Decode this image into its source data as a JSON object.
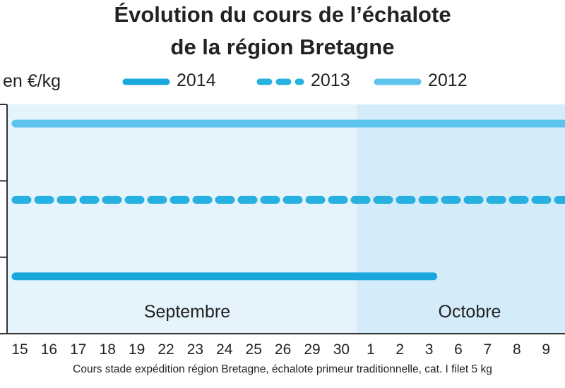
{
  "title_line1": "Évolution du cours de l’échalote",
  "title_line2": "de la région Bretagne",
  "unit_label": "en €/kg",
  "footnote": "Cours stade expédition région Bretagne, échalote primeur traditionnelle, cat. I filet 5 kg",
  "colors": {
    "series_2014": "#1aa7dc",
    "series_2013": "#27b1e0",
    "series_2012": "#5cc3ec",
    "plot_september": "#e5f3fc",
    "plot_october": "#d4ebf9",
    "axis": "#333333"
  },
  "chart_data": {
    "type": "line",
    "title": "Évolution du cours de l’échalote de la région Bretagne",
    "ylabel": "en €/kg",
    "xlabel": "",
    "x": [
      "15",
      "16",
      "17",
      "18",
      "19",
      "22",
      "23",
      "24",
      "25",
      "26",
      "29",
      "30",
      "1",
      "2",
      "3",
      "6",
      "7",
      "8",
      "9"
    ],
    "month_labels": [
      {
        "label": "Septembre",
        "from": "15",
        "to": "30"
      },
      {
        "label": "Octobre",
        "from": "1",
        "to": "9"
      }
    ],
    "y_scale": "unlabeled relative levels (0 = lowest level shown, 3 = top of axis)",
    "ylim": [
      0,
      3
    ],
    "grid": false,
    "legend_placement": "top",
    "series": [
      {
        "name": "2014",
        "style": "solid",
        "values": [
          0.75,
          0.75,
          0.75,
          0.75,
          0.75,
          0.75,
          0.75,
          0.75,
          0.75,
          0.75,
          0.75,
          0.75,
          0.75,
          0.75,
          0.75,
          null,
          null,
          null,
          null
        ]
      },
      {
        "name": "2013",
        "style": "dashed",
        "values": [
          1.75,
          1.75,
          1.75,
          1.75,
          1.75,
          1.75,
          1.75,
          1.75,
          1.75,
          1.75,
          1.75,
          1.75,
          1.75,
          1.75,
          1.75,
          1.75,
          1.75,
          1.75,
          1.75
        ]
      },
      {
        "name": "2012",
        "style": "solid",
        "values": [
          2.75,
          2.75,
          2.75,
          2.75,
          2.75,
          2.75,
          2.75,
          2.75,
          2.75,
          2.75,
          2.75,
          2.75,
          2.75,
          2.75,
          2.75,
          2.75,
          2.75,
          2.75,
          2.75
        ]
      }
    ]
  }
}
